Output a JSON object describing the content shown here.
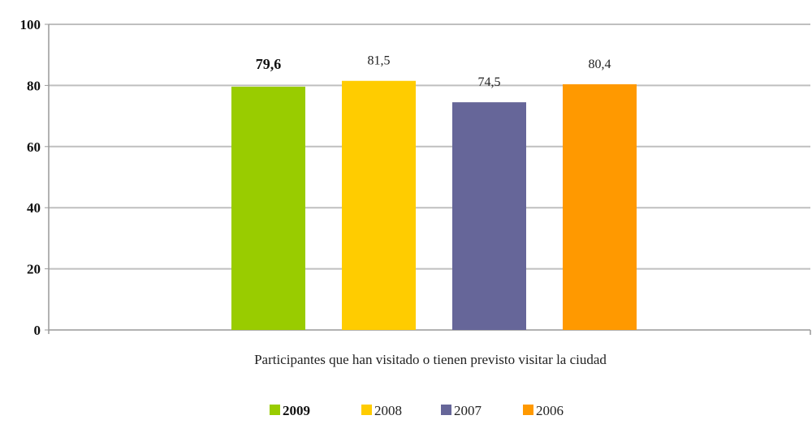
{
  "chart_data": {
    "type": "bar",
    "categories": [
      "Participantes que han visitado o tienen previsto visitar la ciudad"
    ],
    "series": [
      {
        "name": "2009",
        "values": [
          79.6
        ],
        "color": "#99CC00",
        "label": "79,6",
        "bold": true
      },
      {
        "name": "2008",
        "values": [
          81.5
        ],
        "color": "#FFCC00",
        "label": "81,5",
        "bold": false
      },
      {
        "name": "2007",
        "values": [
          74.5
        ],
        "color": "#666699",
        "label": "74,5",
        "bold": false
      },
      {
        "name": "2006",
        "values": [
          80.4
        ],
        "color": "#FF9900",
        "label": "80,4",
        "bold": false
      }
    ],
    "ylim": [
      0,
      100
    ],
    "yticks": [
      "0",
      "20",
      "40",
      "60",
      "80",
      "100"
    ],
    "grid": true,
    "legend_position": "bottom-center",
    "gridline_color": "#BFBFBF"
  }
}
